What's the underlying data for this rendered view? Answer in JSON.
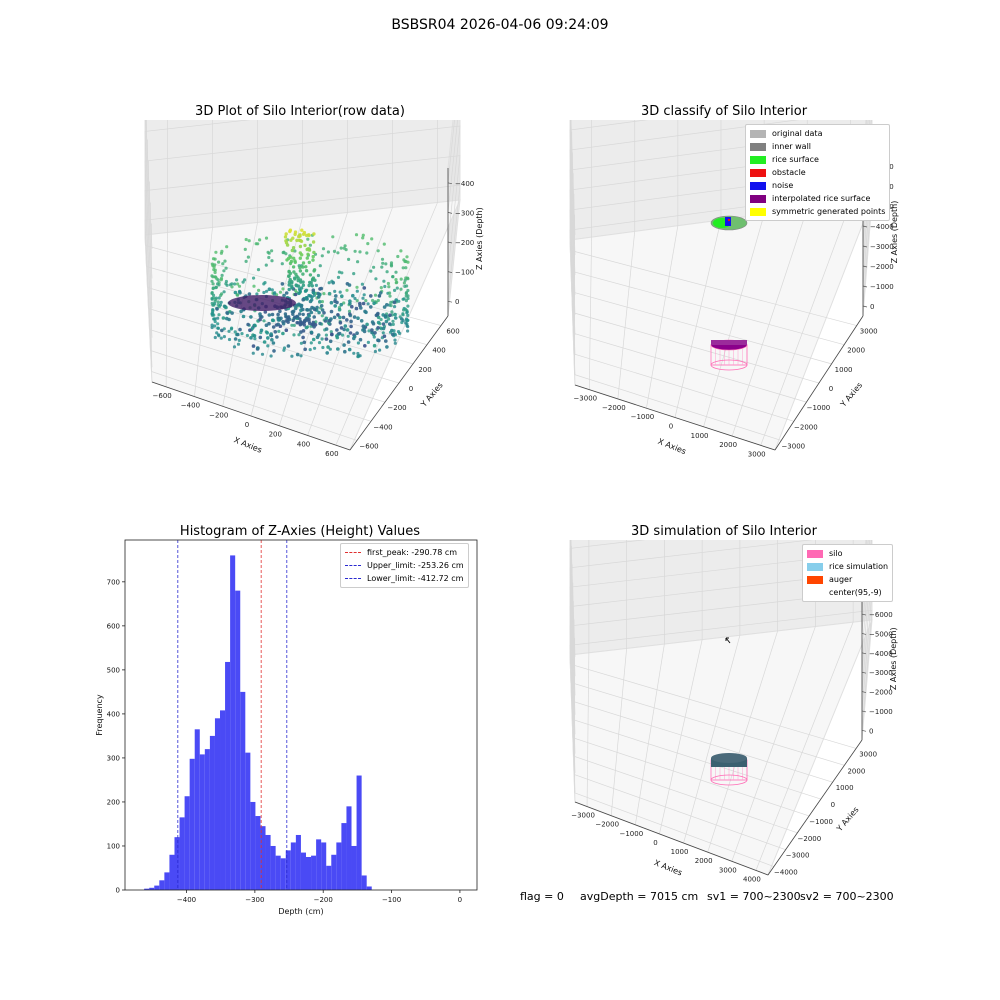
{
  "suptitle": "BSBSR04 2026-04-06 09:24:09",
  "colors": {
    "hist_bar": "#4a4af5",
    "first_peak": "#e03030",
    "limits": "#2a2ad0"
  },
  "chart_data": [
    {
      "type": "scatter",
      "title": "3D Plot of Silo Interior(row data)",
      "xlabel": "X Axies",
      "ylabel": "Y Axies",
      "zlabel": "Z Axies (Depth)",
      "x_ticks": [
        "−600",
        "−400",
        "−200",
        "0",
        "200",
        "400",
        "600"
      ],
      "y_ticks": [
        "−600",
        "−400",
        "−200",
        "0",
        "200",
        "400",
        "600"
      ],
      "z_ticks": [
        "−400",
        "−300",
        "−200",
        "−100",
        "0"
      ],
      "xlim": [
        -650,
        650
      ],
      "ylim": [
        -650,
        650
      ],
      "zlim": [
        -470,
        20
      ],
      "colormap": "viridis"
    },
    {
      "type": "scatter",
      "title": "3D classify of Silo Interior",
      "xlabel": "X Axies",
      "ylabel": "Y Axies",
      "zlabel": "Z Axies (Depth)",
      "x_ticks": [
        "−3000",
        "−2000",
        "−1000",
        "0",
        "1000",
        "2000",
        "3000"
      ],
      "y_ticks": [
        "−3000",
        "−2000",
        "−1000",
        "0",
        "1000",
        "2000",
        "3000"
      ],
      "z_ticks": [
        "−7000",
        "−6000",
        "−5000",
        "−4000",
        "−3000",
        "−2000",
        "−1000",
        "0"
      ],
      "legend": [
        {
          "label": "original data",
          "color": "#b4b4b4"
        },
        {
          "label": "inner wall",
          "color": "#808080"
        },
        {
          "label": "rice surface",
          "color": "#22ee22"
        },
        {
          "label": "obstacle",
          "color": "#ee1111"
        },
        {
          "label": "noise",
          "color": "#1111ee"
        },
        {
          "label": "interpolated rice surface",
          "color": "#800080"
        },
        {
          "label": "symmetric generated points",
          "color": "#ffff00"
        }
      ]
    },
    {
      "type": "bar",
      "title": "Histogram of Z-Axies (Height) Values",
      "xlabel": "Depth (cm)",
      "ylabel": "Frequency",
      "xlim": [
        -490,
        25
      ],
      "ylim": [
        0,
        795
      ],
      "x_ticks": [
        -400,
        -300,
        -200,
        -100,
        0
      ],
      "y_ticks": [
        0,
        100,
        200,
        300,
        400,
        500,
        600,
        700
      ],
      "bin_start": -462,
      "bin_width": 7.4,
      "values": [
        3,
        5,
        10,
        22,
        40,
        80,
        120,
        165,
        213,
        298,
        365,
        308,
        320,
        350,
        390,
        408,
        518,
        760,
        680,
        450,
        312,
        200,
        168,
        145,
        125,
        100,
        78,
        72,
        90,
        108,
        125,
        85,
        75,
        78,
        115,
        108,
        55,
        80,
        108,
        152,
        190,
        100,
        260,
        33,
        8
      ],
      "vlines": [
        {
          "label": "first_peak: -290.78 cm",
          "x": -290.78,
          "color": "#e03030"
        },
        {
          "label": "Upper_limit: -253.26 cm",
          "x": -253.26,
          "color": "#2a2ad0"
        },
        {
          "label": "Lower_limit: -412.72 cm",
          "x": -412.72,
          "color": "#2a2ad0"
        }
      ]
    },
    {
      "type": "scatter",
      "title": "3D simulation of Silo Interior",
      "xlabel": "X Axies",
      "ylabel": "Y Axies",
      "zlabel": "Z Axies (Depth)",
      "x_ticks": [
        "−3000",
        "−2000",
        "−1000",
        "0",
        "1000",
        "2000",
        "3000",
        "4000"
      ],
      "y_ticks": [
        "−4000",
        "−3000",
        "−2000",
        "−1000",
        "0",
        "1000",
        "2000",
        "3000"
      ],
      "z_ticks": [
        "−7000",
        "−6000",
        "−5000",
        "−4000",
        "−3000",
        "−2000",
        "−1000",
        "0"
      ],
      "legend": [
        {
          "label": "silo",
          "color": "#ff69b4"
        },
        {
          "label": "rice simulation",
          "color": "#87ceeb"
        },
        {
          "label": "auger",
          "color": "#ff4500"
        },
        {
          "label": "center(95,-9)",
          "color": ""
        }
      ]
    }
  ],
  "status": {
    "flag": "flag = 0",
    "avg_depth": "avgDepth = 7015 cm",
    "sv1": "sv1 = 700~2300",
    "sv2": "sv2 = 700~2300"
  }
}
